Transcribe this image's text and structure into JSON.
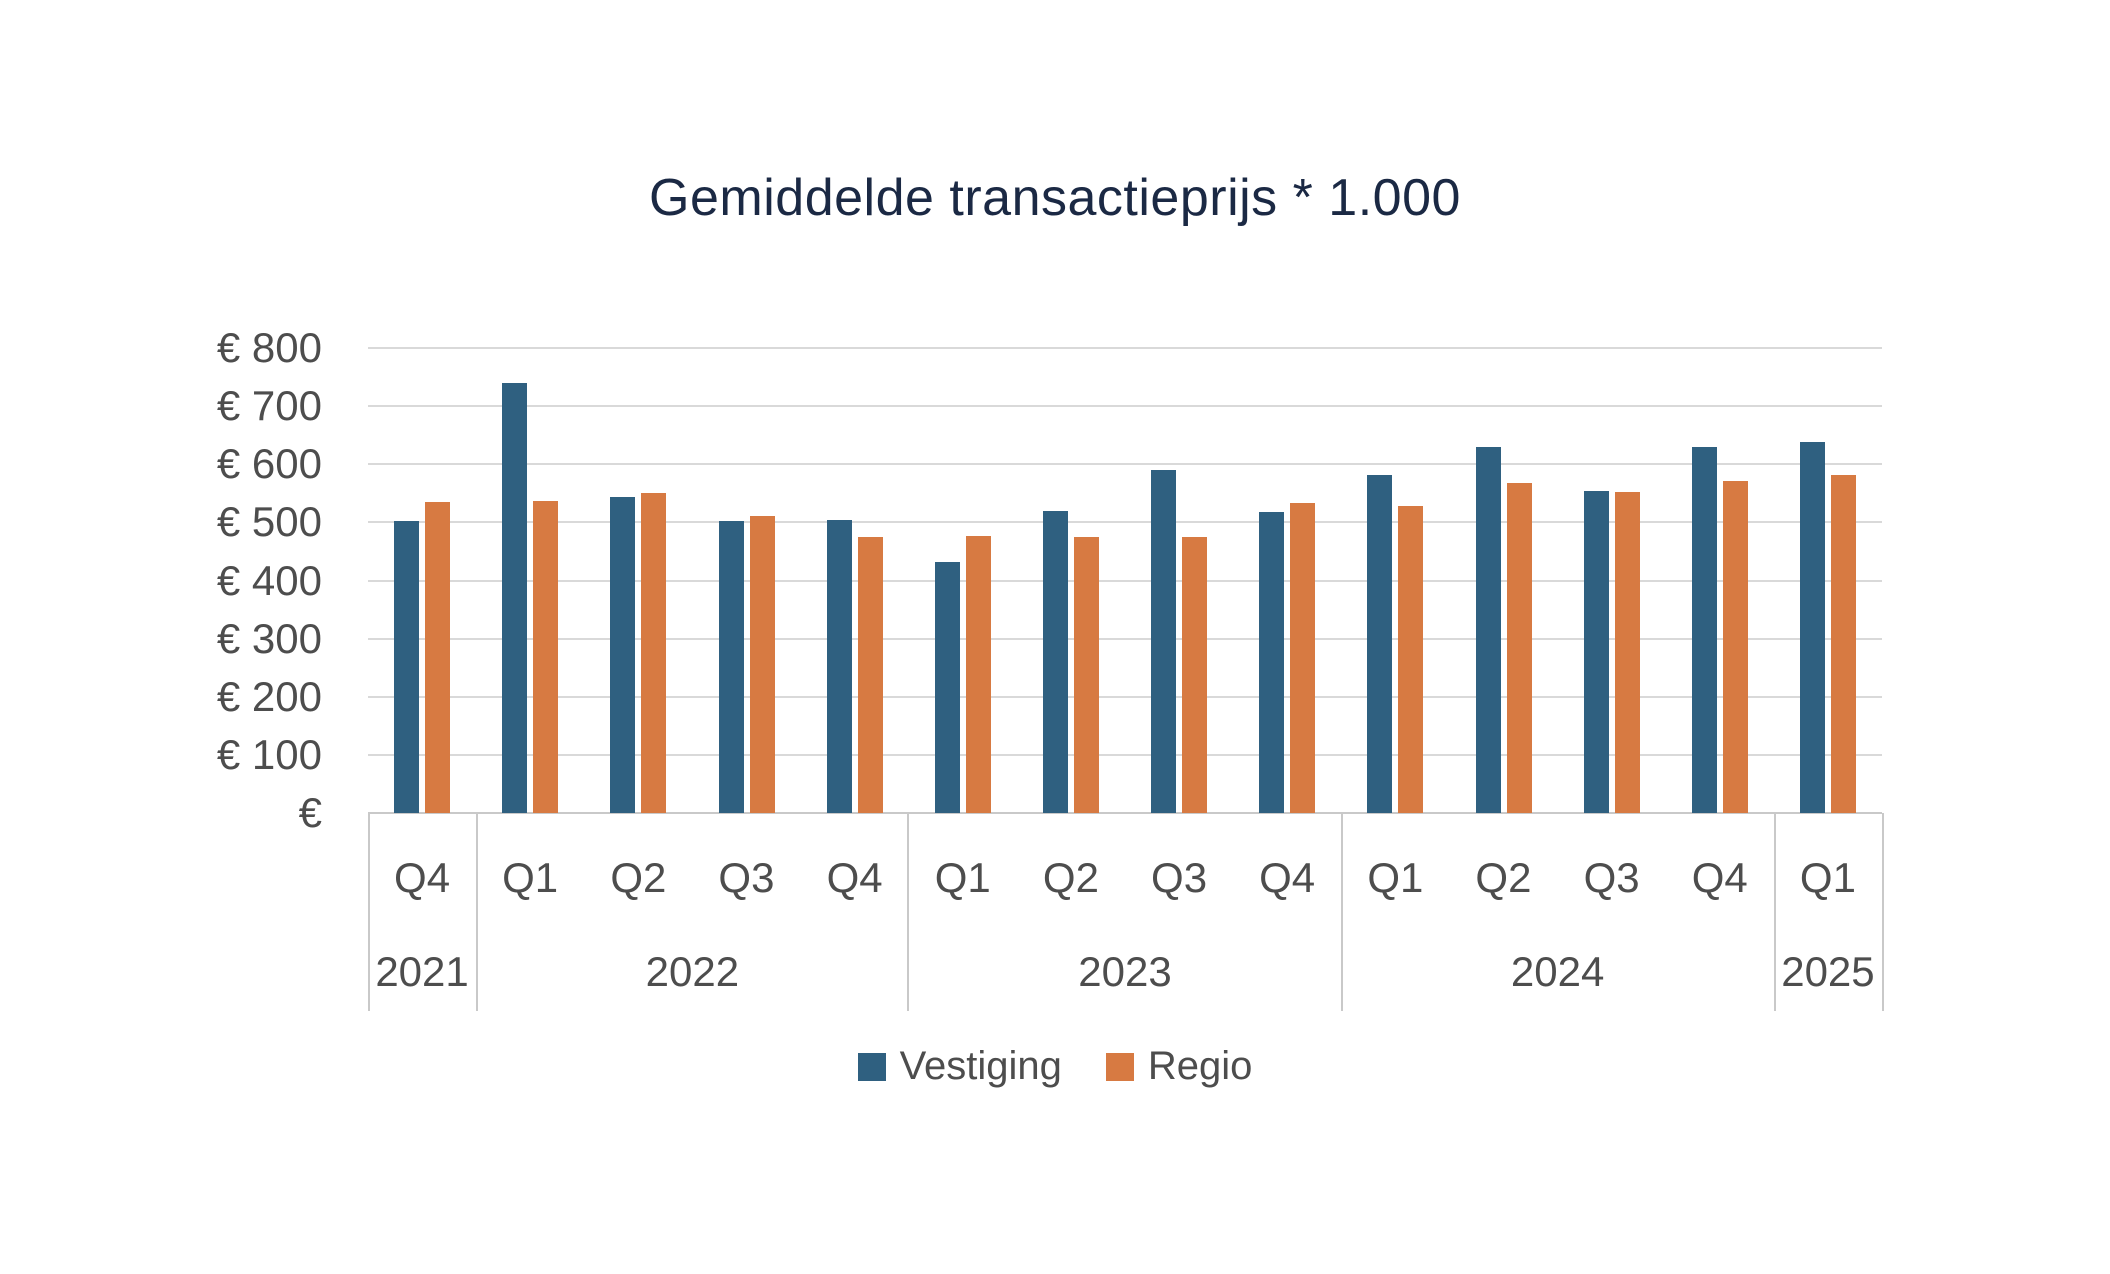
{
  "title": "Gemiddelde transactieprijs * 1.000",
  "chart_data": {
    "type": "bar",
    "title": "Gemiddelde transactieprijs * 1.000",
    "unit": "EUR x 1000",
    "quarters": [
      "Q4",
      "Q1",
      "Q2",
      "Q3",
      "Q4",
      "Q1",
      "Q2",
      "Q3",
      "Q4",
      "Q1",
      "Q2",
      "Q3",
      "Q4",
      "Q1"
    ],
    "year_groups": [
      {
        "label": "2021",
        "span": 1
      },
      {
        "label": "2022",
        "span": 4
      },
      {
        "label": "2023",
        "span": 4
      },
      {
        "label": "2024",
        "span": 4
      },
      {
        "label": "2025",
        "span": 1
      }
    ],
    "series": [
      {
        "name": "Vestiging",
        "color": "#2F6080",
        "values": [
          502,
          740,
          544,
          502,
          504,
          432,
          520,
          590,
          518,
          581,
          630,
          554,
          629,
          638
        ]
      },
      {
        "name": "Regio",
        "color": "#D77A42",
        "values": [
          535,
          537,
          550,
          511,
          475,
          477,
          475,
          475,
          533,
          529,
          568,
          552,
          572,
          581
        ]
      }
    ],
    "y_axis": {
      "min": 0,
      "max": 800,
      "tick_values": [
        800,
        700,
        600,
        500,
        400,
        300,
        200,
        100,
        0
      ],
      "tick_labels": [
        "€ 800",
        "€ 700",
        "€ 600",
        "€ 500",
        "€ 400",
        "€ 300",
        "€ 200",
        "€ 100",
        "€"
      ]
    },
    "grid": "horizontal",
    "legend_position": "bottom",
    "colors": {
      "gridline": "#D9D9D9",
      "axis_line": "#C9C9C9",
      "axis_text": "#4D4D4D",
      "title_text": "#1B2944",
      "background": "#FFFFFF"
    }
  }
}
